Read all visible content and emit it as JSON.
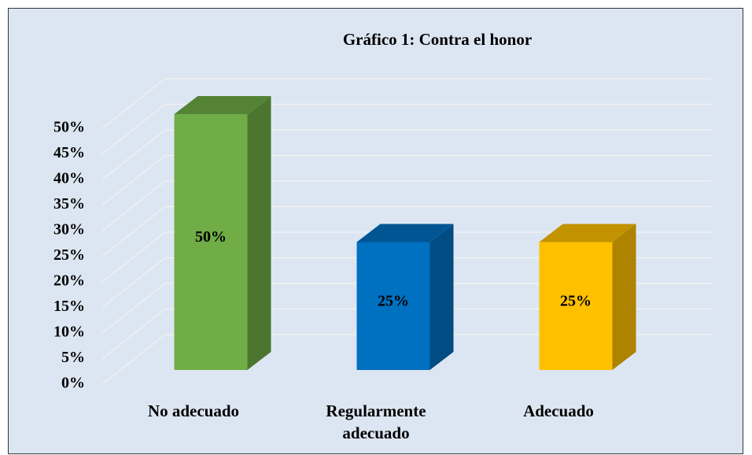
{
  "chart_data": {
    "type": "bar3d",
    "title": "Gráfico 1: Contra el honor",
    "categories": [
      "No adecuado",
      "Regularmente adecuado",
      "Adecuado"
    ],
    "values": [
      50,
      25,
      25
    ],
    "value_labels": [
      "50%",
      "25%",
      "25%"
    ],
    "colors": [
      "#70ad47",
      "#0070c0",
      "#ffc000"
    ],
    "ylim": [
      0,
      50
    ],
    "yticks": [
      {
        "value": 0,
        "label": "0%"
      },
      {
        "value": 5,
        "label": "5%"
      },
      {
        "value": 10,
        "label": "10%"
      },
      {
        "value": 15,
        "label": "15%"
      },
      {
        "value": 20,
        "label": "20%"
      },
      {
        "value": 25,
        "label": "25%"
      },
      {
        "value": 30,
        "label": "30%"
      },
      {
        "value": 35,
        "label": "35%"
      },
      {
        "value": 40,
        "label": "40%"
      },
      {
        "value": 45,
        "label": "45%"
      },
      {
        "value": 50,
        "label": "50%"
      }
    ],
    "grid": true
  }
}
